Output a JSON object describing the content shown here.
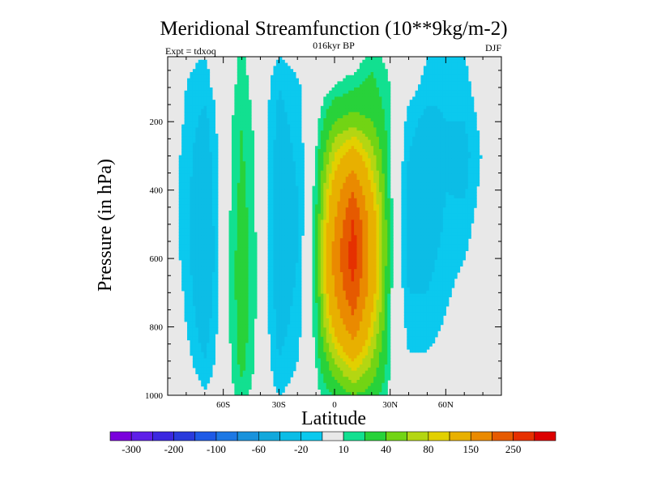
{
  "chart_data": {
    "type": "heatmap",
    "title": "Meridional Streamfunction (10**9kg/m-2)",
    "subtitle": "016kyr BP",
    "left_note": "Expt = tdxoq",
    "right_note": "DJF",
    "xlabel": "Latitude",
    "ylabel": "Pressure (in hPa)",
    "xlim": [
      -90,
      90
    ],
    "ylim": [
      1000,
      10
    ],
    "x_ticks": [
      {
        "value": -60,
        "label": "60S"
      },
      {
        "value": -30,
        "label": "30S"
      },
      {
        "value": 0,
        "label": "0"
      },
      {
        "value": 30,
        "label": "30N"
      },
      {
        "value": 60,
        "label": "60N"
      }
    ],
    "y_ticks": [
      {
        "value": 200,
        "label": "200"
      },
      {
        "value": 400,
        "label": "400"
      },
      {
        "value": 600,
        "label": "600"
      },
      {
        "value": 800,
        "label": "800"
      },
      {
        "value": 1000,
        "label": "1000"
      }
    ],
    "levels": [
      -300,
      -250,
      -200,
      -150,
      -100,
      -80,
      -60,
      -40,
      -20,
      -10,
      10,
      20,
      40,
      60,
      80,
      100,
      150,
      200,
      250,
      300
    ],
    "colors": [
      "#7a00dc",
      "#5f1fe8",
      "#3c28e0",
      "#2a3bdc",
      "#1e5ae6",
      "#1d78e4",
      "#1a92dc",
      "#12a8dc",
      "#0cbde6",
      "#0bc9ee",
      "#e8e8e8",
      "#12e090",
      "#28d23a",
      "#72d414",
      "#b4d612",
      "#e2d000",
      "#e8b000",
      "#ea8a00",
      "#e65a00",
      "#e63000",
      "#dc0000"
    ],
    "colorbar_labels": [
      "-300",
      "-200",
      "-100",
      "-60",
      "-20",
      "10",
      "40",
      "80",
      "150",
      "250"
    ],
    "field": {
      "x": [
        -90,
        -80,
        -70,
        -60,
        -50,
        -40,
        -30,
        -20,
        -10,
        0,
        10,
        20,
        30,
        40,
        50,
        60,
        70,
        80,
        90
      ],
      "p": [
        10,
        100,
        200,
        300,
        400,
        500,
        600,
        700,
        800,
        900,
        1000
      ],
      "values": [
        [
          0,
          -8,
          -10,
          0,
          12,
          0,
          -10,
          -5,
          0,
          0,
          0,
          15,
          5,
          0,
          -10,
          -12,
          -10,
          0,
          0
        ],
        [
          0,
          -10,
          -15,
          0,
          15,
          0,
          -20,
          -12,
          0,
          10,
          18,
          25,
          10,
          -5,
          -15,
          -18,
          -15,
          0,
          0
        ],
        [
          0,
          -12,
          -25,
          0,
          20,
          2,
          -25,
          -15,
          5,
          40,
          50,
          40,
          12,
          -15,
          -25,
          -20,
          -20,
          -5,
          0
        ],
        [
          0,
          -15,
          -30,
          0,
          22,
          3,
          -28,
          -18,
          10,
          80,
          120,
          70,
          12,
          -20,
          -30,
          -22,
          -25,
          -8,
          0
        ],
        [
          0,
          -15,
          -35,
          0,
          25,
          3,
          -30,
          -20,
          15,
          120,
          200,
          100,
          12,
          -25,
          -35,
          -20,
          -22,
          -5,
          0
        ],
        [
          0,
          -15,
          -38,
          0,
          28,
          3,
          -32,
          -22,
          20,
          150,
          260,
          130,
          15,
          -25,
          -30,
          -18,
          -15,
          -3,
          0
        ],
        [
          0,
          -15,
          -40,
          0,
          30,
          3,
          -30,
          -20,
          20,
          170,
          280,
          130,
          15,
          -25,
          -25,
          -15,
          -10,
          0,
          0
        ],
        [
          0,
          -12,
          -35,
          0,
          30,
          3,
          -28,
          -18,
          18,
          150,
          240,
          120,
          12,
          -20,
          -20,
          -12,
          -5,
          0,
          0
        ],
        [
          0,
          -10,
          -28,
          0,
          28,
          3,
          -25,
          -15,
          15,
          110,
          180,
          90,
          12,
          -15,
          -15,
          -8,
          0,
          0,
          0
        ],
        [
          0,
          -5,
          -20,
          0,
          25,
          2,
          -20,
          -10,
          10,
          60,
          100,
          60,
          10,
          -8,
          -8,
          -3,
          0,
          0,
          0
        ],
        [
          0,
          0,
          -8,
          0,
          15,
          0,
          -10,
          -5,
          5,
          20,
          40,
          30,
          5,
          0,
          0,
          0,
          0,
          0,
          0
        ]
      ]
    }
  }
}
